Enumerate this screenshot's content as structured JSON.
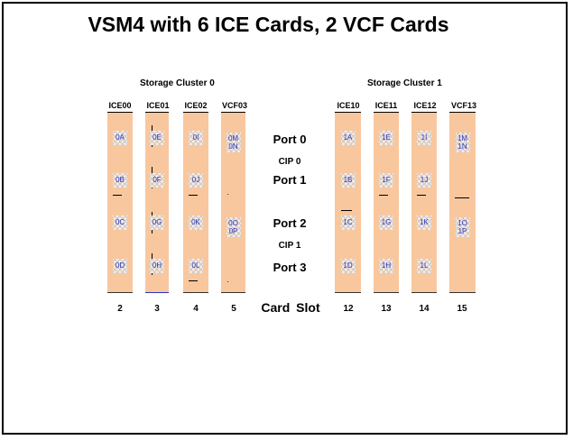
{
  "title": "VSM4 with 6 ICE Cards, 2 VCF Cards",
  "clusters": [
    {
      "label": "Storage Cluster 0"
    },
    {
      "label": "Storage Cluster 1"
    }
  ],
  "cards": [
    {
      "name": "ICE00",
      "slot": "2",
      "ports": [
        "0A",
        "0B",
        "0C",
        "0D"
      ]
    },
    {
      "name": "ICE01",
      "slot": "3",
      "ports": [
        "0E",
        "0F",
        "0G",
        "0H"
      ]
    },
    {
      "name": "ICE02",
      "slot": "4",
      "ports": [
        "0I",
        "0J",
        "0K",
        "0L"
      ]
    },
    {
      "name": "VCF03",
      "slot": "5",
      "ports": [
        "0M\n0N",
        "0O\n0P"
      ]
    },
    {
      "name": "ICE10",
      "slot": "12",
      "ports": [
        "1A",
        "1B",
        "1C",
        "1D"
      ]
    },
    {
      "name": "ICE11",
      "slot": "13",
      "ports": [
        "1E",
        "1F",
        "1G",
        "1H"
      ]
    },
    {
      "name": "ICE12",
      "slot": "14",
      "ports": [
        "1I",
        "1J",
        "1K",
        "1L"
      ]
    },
    {
      "name": "VCF13",
      "slot": "15",
      "ports": [
        "1M\n1N",
        "1O\n1P"
      ]
    }
  ],
  "center_labels": {
    "port0": "Port 0",
    "cip0": "CIP 0",
    "port1": "Port 1",
    "port2": "Port 2",
    "cip1": "CIP 1",
    "port3": "Port 3",
    "card_slot": "Card Slot"
  },
  "colors": {
    "card_fill": "#f9c79e",
    "port_label": "#2a35c2"
  }
}
